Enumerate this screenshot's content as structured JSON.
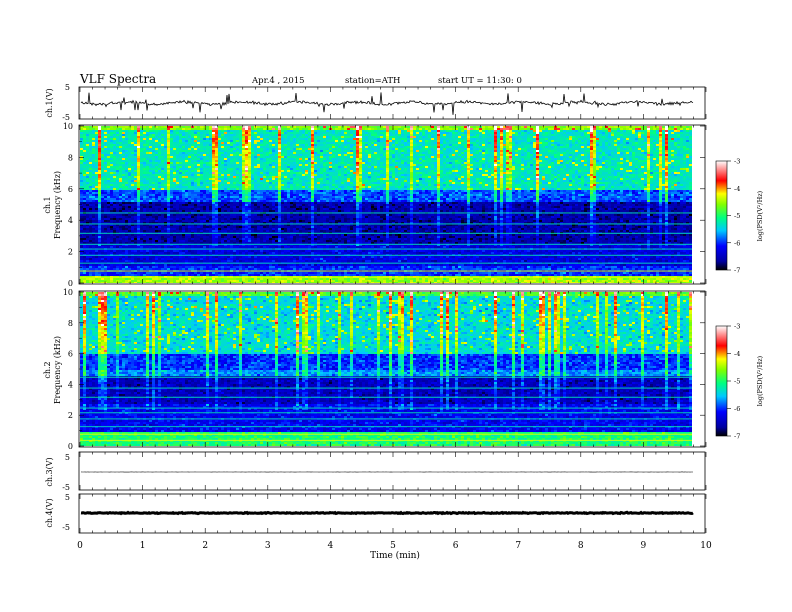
{
  "header": {
    "title": "VLF  Spectra",
    "date": "Apr.4  , 2015",
    "station": "station=ATH",
    "start": "start  UT  =    11:30: 0"
  },
  "chart_data": [
    {
      "type": "line",
      "name": "ch1-waveform",
      "ylabel": "ch.1(V)",
      "ylim": [
        -5,
        5
      ],
      "yticks": [
        "5",
        "-5"
      ],
      "xlim": [
        0,
        10
      ],
      "baseline": 0,
      "trace_style": "noisy",
      "color": "#000000"
    },
    {
      "type": "heatmap",
      "name": "ch1-spectrogram",
      "ylabel": "ch.1\nFrequency  (kHz)",
      "ylim": [
        0,
        10
      ],
      "yticks": [
        "0",
        "2",
        "4",
        "6",
        "8",
        "10"
      ],
      "xlim": [
        0,
        9.8
      ],
      "bands": [
        {
          "from": 9.8,
          "to": 10,
          "level": -4.6
        },
        {
          "from": 6.0,
          "to": 9.8,
          "level": -5.3
        },
        {
          "from": 5.2,
          "to": 6.0,
          "level": -5.9
        },
        {
          "from": 2.6,
          "to": 5.2,
          "level": -6.6
        },
        {
          "from": 1.2,
          "to": 2.6,
          "level": -6.3
        },
        {
          "from": 0.5,
          "to": 1.2,
          "level": -6.0
        },
        {
          "from": 0.0,
          "to": 0.5,
          "level": -4.5
        }
      ],
      "colorbar": {
        "label": "log(PSD(V²/Hz)",
        "range": [
          -7,
          -3
        ],
        "ticks": [
          "-3",
          "-4",
          "-5",
          "-6",
          "-7"
        ]
      }
    },
    {
      "type": "heatmap",
      "name": "ch2-spectrogram",
      "ylabel": "ch.2\nFrequency  (kHz)",
      "ylim": [
        0,
        10
      ],
      "yticks": [
        "0",
        "2",
        "4",
        "6",
        "8",
        "10"
      ],
      "xlim": [
        0,
        9.8
      ],
      "bands": [
        {
          "from": 9.8,
          "to": 10,
          "level": -4.8
        },
        {
          "from": 6.0,
          "to": 9.8,
          "level": -5.4
        },
        {
          "from": 5.0,
          "to": 6.0,
          "level": -6.0
        },
        {
          "from": 4.6,
          "to": 5.0,
          "level": -5.7
        },
        {
          "from": 2.8,
          "to": 4.6,
          "level": -6.5
        },
        {
          "from": 1.0,
          "to": 2.8,
          "level": -6.2
        },
        {
          "from": 0.0,
          "to": 1.0,
          "level": -5.0
        }
      ],
      "colorbar": {
        "label": "log(PSD(V²/Hz)",
        "range": [
          -7,
          -3
        ],
        "ticks": [
          "-3",
          "-4",
          "-5",
          "-6",
          "-7"
        ]
      }
    },
    {
      "type": "line",
      "name": "ch3-waveform",
      "ylabel": "ch.3(V)",
      "ylim": [
        -5,
        5
      ],
      "yticks": [
        "5",
        "-5"
      ],
      "xlim": [
        0,
        10
      ],
      "baseline": 0,
      "trace_style": "thin",
      "color": "#000000"
    },
    {
      "type": "line",
      "name": "ch4-waveform",
      "ylabel": "ch.4(V)",
      "ylim": [
        -5,
        5
      ],
      "yticks": [
        "5",
        "-5"
      ],
      "xlim": [
        0,
        10
      ],
      "baseline": 0,
      "trace_style": "thick",
      "color": "#000000"
    }
  ],
  "x_axis": {
    "label": "Time  (min)",
    "range": [
      0,
      10
    ],
    "ticks": [
      "0",
      "1",
      "2",
      "3",
      "4",
      "5",
      "6",
      "7",
      "8",
      "9",
      "10"
    ]
  }
}
